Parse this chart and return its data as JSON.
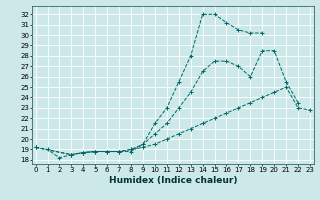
{
  "xlabel": "Humidex (Indice chaleur)",
  "bg_color": "#cce8e8",
  "grid_color": "#ffffff",
  "line_color": "#006666",
  "lines": [
    {
      "x": [
        0,
        1,
        2,
        3,
        4,
        5,
        6,
        7,
        8,
        9,
        10,
        11,
        12,
        13,
        14,
        15,
        16,
        17,
        18,
        19
      ],
      "y": [
        19.2,
        19.0,
        18.2,
        18.5,
        18.7,
        18.8,
        18.8,
        18.8,
        18.8,
        19.5,
        21.5,
        23.0,
        25.5,
        28.0,
        32.0,
        32.0,
        31.2,
        30.5,
        30.2,
        30.2
      ]
    },
    {
      "x": [
        0,
        3,
        4,
        5,
        6,
        7,
        8,
        9,
        10,
        11,
        12,
        13,
        14,
        15,
        16,
        17,
        18,
        19,
        20,
        21,
        22
      ],
      "y": [
        19.2,
        18.5,
        18.7,
        18.8,
        18.8,
        18.8,
        19.0,
        19.5,
        20.5,
        21.5,
        23.0,
        24.5,
        26.5,
        27.5,
        27.5,
        27.0,
        26.0,
        28.5,
        28.5,
        25.5,
        23.5
      ]
    },
    {
      "x": [
        0,
        3,
        4,
        5,
        6,
        7,
        8,
        9,
        10,
        11,
        12,
        13,
        14,
        15,
        16,
        17,
        18,
        19,
        20,
        21,
        22,
        23
      ],
      "y": [
        19.2,
        18.5,
        18.7,
        18.8,
        18.8,
        18.8,
        19.0,
        19.2,
        19.5,
        20.0,
        20.5,
        21.0,
        21.5,
        22.0,
        22.5,
        23.0,
        23.5,
        24.0,
        24.5,
        25.0,
        23.0,
        22.8
      ]
    }
  ],
  "xlim": [
    -0.3,
    23.3
  ],
  "ylim": [
    17.6,
    32.8
  ],
  "yticks": [
    18,
    19,
    20,
    21,
    22,
    23,
    24,
    25,
    26,
    27,
    28,
    29,
    30,
    31,
    32
  ],
  "xticks": [
    0,
    1,
    2,
    3,
    4,
    5,
    6,
    7,
    8,
    9,
    10,
    11,
    12,
    13,
    14,
    15,
    16,
    17,
    18,
    19,
    20,
    21,
    22,
    23
  ],
  "tick_fontsize": 5.0,
  "label_fontsize": 6.5
}
